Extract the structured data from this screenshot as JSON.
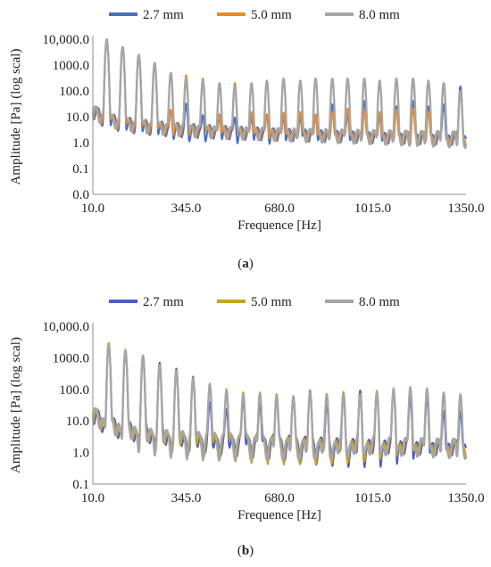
{
  "colors": {
    "s27_a": "#4a6fc0",
    "s50_a": "#e8892b",
    "s80": "#a6a6a6",
    "s27_b": "#4a5cc8",
    "s50_b": "#c9a21e",
    "axis": "#8c8c8c",
    "text": "#222222"
  },
  "captions": {
    "a_prefix": "(",
    "a_letter": "a",
    "a_suffix": ")",
    "b_prefix": "(",
    "b_letter": "b",
    "b_suffix": ")"
  },
  "chart_data": [
    {
      "id": "a",
      "type": "line",
      "ylabel": "Amplitude [Pa] (log scal)",
      "xlabel": "Frequence [Hz]",
      "y_scale": "log",
      "ylim": [
        0.01,
        10000
      ],
      "xlim": [
        10,
        1350
      ],
      "y_tick_labels": [
        "0.0",
        "0.1",
        "1.0",
        "10.0",
        "100.0",
        "1000.0",
        "10,000.0"
      ],
      "y_tick_values": [
        0.01,
        0.1,
        1,
        10,
        100,
        1000,
        10000
      ],
      "x_tick_labels": [
        "10.0",
        "345.0",
        "680.0",
        "1015.0",
        "1350.0"
      ],
      "x_tick_values": [
        10,
        345,
        680,
        1015,
        1350
      ],
      "legend_position": "top",
      "series": [
        {
          "name": "2.7 mm",
          "color": "#4a6fc0",
          "peaks": [
            [
              60,
              10000
            ],
            [
              117,
              5000
            ],
            [
              175,
              2500
            ],
            [
              232,
              1200
            ],
            [
              290,
              15
            ],
            [
              345,
              30
            ],
            [
              405,
              10
            ],
            [
              465,
              9
            ],
            [
              520,
              8
            ],
            [
              580,
              9
            ],
            [
              635,
              10
            ],
            [
              695,
              9
            ],
            [
              755,
              10
            ],
            [
              810,
              11
            ],
            [
              870,
              30
            ],
            [
              925,
              12
            ],
            [
              985,
              40
            ],
            [
              1040,
              11
            ],
            [
              1100,
              25
            ],
            [
              1160,
              40
            ],
            [
              1215,
              25
            ],
            [
              1270,
              30
            ],
            [
              1330,
              150
            ]
          ]
        },
        {
          "name": "5.0 mm",
          "color": "#e8892b",
          "peaks": [
            [
              60,
              9000
            ],
            [
              117,
              4500
            ],
            [
              175,
              2400
            ],
            [
              232,
              1100
            ],
            [
              290,
              18
            ],
            [
              345,
              400
            ],
            [
              405,
              300
            ],
            [
              465,
              12
            ],
            [
              520,
              200
            ],
            [
              580,
              15
            ],
            [
              635,
              12
            ],
            [
              695,
              14
            ],
            [
              755,
              15
            ],
            [
              810,
              12
            ],
            [
              870,
              15
            ],
            [
              925,
              20
            ],
            [
              985,
              16
            ],
            [
              1040,
              15
            ],
            [
              1100,
              18
            ],
            [
              1160,
              20
            ],
            [
              1215,
              15
            ],
            [
              1270,
              200
            ],
            [
              1330,
              100
            ]
          ]
        },
        {
          "name": "8.0 mm",
          "color": "#a6a6a6",
          "peaks": [
            [
              60,
              10000
            ],
            [
              117,
              5000
            ],
            [
              175,
              2500
            ],
            [
              232,
              1200
            ],
            [
              290,
              500
            ],
            [
              345,
              300
            ],
            [
              405,
              250
            ],
            [
              465,
              200
            ],
            [
              520,
              150
            ],
            [
              580,
              200
            ],
            [
              635,
              250
            ],
            [
              695,
              300
            ],
            [
              755,
              250
            ],
            [
              810,
              300
            ],
            [
              870,
              300
            ],
            [
              925,
              300
            ],
            [
              985,
              300
            ],
            [
              1040,
              250
            ],
            [
              1100,
              300
            ],
            [
              1160,
              300
            ],
            [
              1215,
              250
            ],
            [
              1270,
              200
            ],
            [
              1330,
              100
            ]
          ]
        }
      ]
    },
    {
      "id": "b",
      "type": "line",
      "ylabel": "Amplitude [Pa] (log scal)",
      "xlabel": "Frequence [Hz]",
      "y_scale": "log",
      "ylim": [
        0.1,
        10000
      ],
      "xlim": [
        10,
        1350
      ],
      "y_tick_labels": [
        "0.1",
        "1.0",
        "10.0",
        "100.0",
        "1000.0",
        "10,000.0"
      ],
      "y_tick_values": [
        0.1,
        1,
        10,
        100,
        1000,
        10000
      ],
      "x_tick_labels": [
        "10.0",
        "345.0",
        "680.0",
        "1015.0",
        "1350.0"
      ],
      "x_tick_values": [
        10,
        345,
        680,
        1015,
        1350
      ],
      "legend_position": "top",
      "series": [
        {
          "name": "2.7 mm",
          "color": "#4a5cc8",
          "peaks": [
            [
              67,
              2800
            ],
            [
              127,
              1800
            ],
            [
              190,
              1200
            ],
            [
              250,
              700
            ],
            [
              310,
              450
            ],
            [
              370,
              250
            ],
            [
              430,
              35
            ],
            [
              490,
              20
            ],
            [
              550,
              40
            ],
            [
              610,
              30
            ],
            [
              670,
              50
            ],
            [
              730,
              50
            ],
            [
              790,
              90
            ],
            [
              850,
              30
            ],
            [
              910,
              50
            ],
            [
              970,
              90
            ],
            [
              1030,
              60
            ],
            [
              1090,
              80
            ],
            [
              1150,
              50
            ],
            [
              1210,
              50
            ],
            [
              1270,
              20
            ],
            [
              1330,
              20
            ]
          ]
        },
        {
          "name": "5.0 mm",
          "color": "#c9a21e",
          "peaks": [
            [
              67,
              3000
            ],
            [
              127,
              1800
            ],
            [
              190,
              1200
            ],
            [
              250,
              600
            ],
            [
              310,
              400
            ],
            [
              370,
              230
            ],
            [
              430,
              150
            ],
            [
              490,
              100
            ],
            [
              550,
              80
            ],
            [
              610,
              80
            ],
            [
              670,
              70
            ],
            [
              730,
              60
            ],
            [
              790,
              70
            ],
            [
              850,
              70
            ],
            [
              910,
              80
            ],
            [
              970,
              70
            ],
            [
              1030,
              90
            ],
            [
              1090,
              110
            ],
            [
              1150,
              120
            ],
            [
              1210,
              110
            ],
            [
              1270,
              80
            ],
            [
              1330,
              70
            ]
          ]
        },
        {
          "name": "8.0 mm",
          "color": "#a6a6a6",
          "peaks": [
            [
              67,
              2500
            ],
            [
              127,
              1700
            ],
            [
              190,
              1100
            ],
            [
              250,
              550
            ],
            [
              310,
              380
            ],
            [
              370,
              220
            ],
            [
              430,
              140
            ],
            [
              490,
              90
            ],
            [
              550,
              70
            ],
            [
              610,
              70
            ],
            [
              670,
              60
            ],
            [
              730,
              55
            ],
            [
              790,
              80
            ],
            [
              850,
              65
            ],
            [
              910,
              70
            ],
            [
              970,
              60
            ],
            [
              1030,
              80
            ],
            [
              1090,
              100
            ],
            [
              1150,
              110
            ],
            [
              1210,
              100
            ],
            [
              1270,
              75
            ],
            [
              1330,
              65
            ]
          ]
        }
      ]
    }
  ]
}
